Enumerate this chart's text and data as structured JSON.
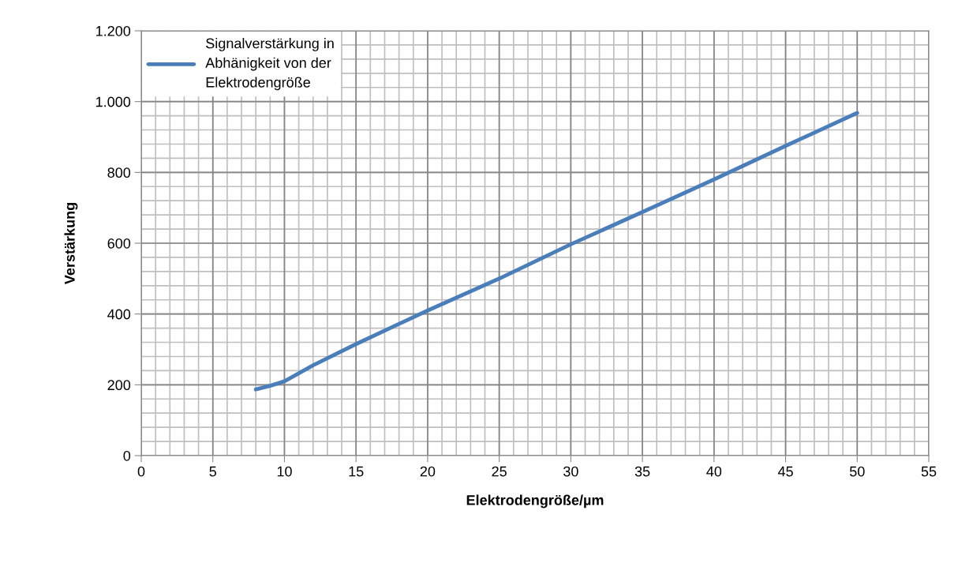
{
  "chart_data": {
    "type": "line",
    "xlabel": "Elektrodengröße/µm",
    "ylabel": "Verstärkung",
    "x": [
      8,
      9,
      10,
      12,
      15,
      20,
      25,
      30,
      35,
      40,
      45,
      50
    ],
    "series": [
      {
        "name": "Signalverstärkung in Abhänigkeit von der Elektrodengröße",
        "color": "#4a7ebb",
        "values": [
          187,
          197,
          210,
          255,
          315,
          410,
          500,
          597,
          688,
          780,
          875,
          968
        ]
      }
    ],
    "xlim": [
      0,
      55
    ],
    "xticks": [
      0,
      5,
      10,
      15,
      20,
      25,
      30,
      35,
      40,
      45,
      50,
      55
    ],
    "ylim": [
      0,
      1200
    ],
    "yticks": [
      0,
      200,
      400,
      600,
      800,
      {
        "value": 1000,
        "label": "1.000"
      },
      {
        "value": 1200,
        "label": "1.200"
      }
    ],
    "grid": true,
    "legend": "top left",
    "marker": "none",
    "line_style": "solid"
  }
}
